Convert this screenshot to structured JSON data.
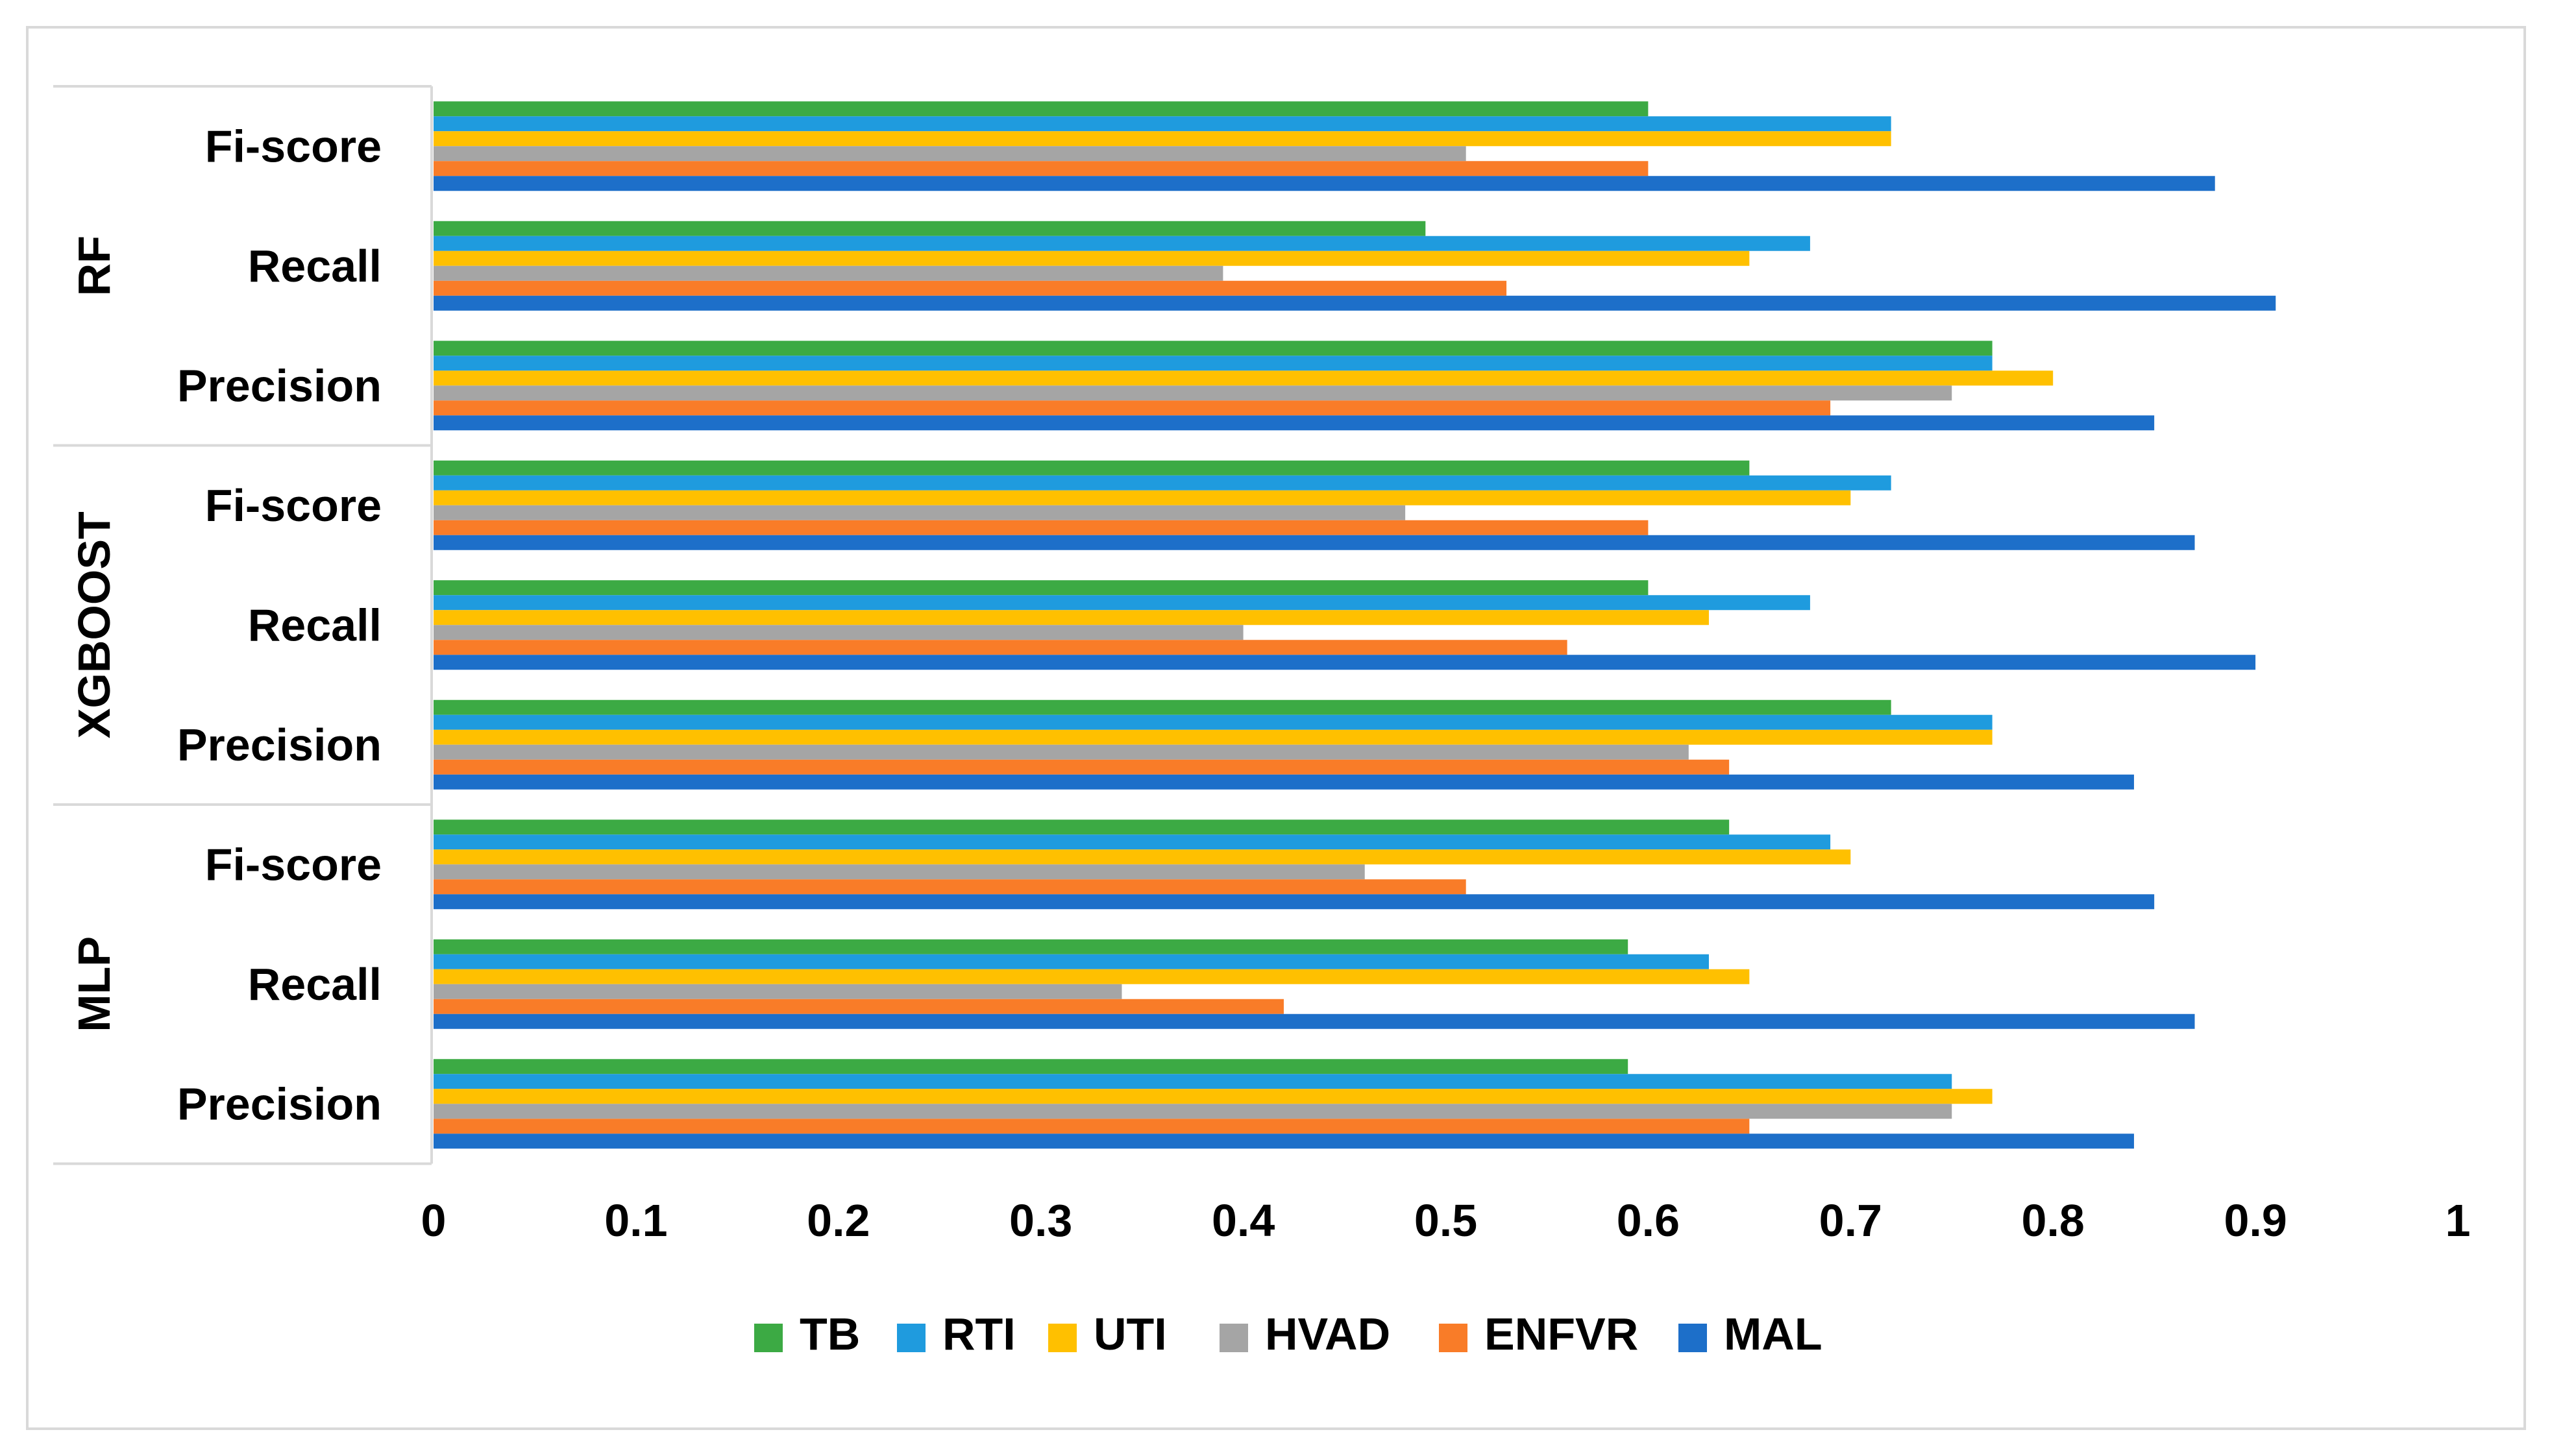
{
  "chart_data": {
    "type": "bar",
    "orientation": "horizontal",
    "title": "",
    "xlabel": "",
    "ylabel": "",
    "xlim": [
      0,
      1
    ],
    "xticks": [
      "0",
      "0.1",
      "0.2",
      "0.3",
      "0.4",
      "0.5",
      "0.6",
      "0.7",
      "0.8",
      "0.9",
      "1"
    ],
    "grid": false,
    "legend_position": "bottom",
    "groups": [
      {
        "name": "RF",
        "categories": [
          {
            "label": "Fi-score",
            "values": {
              "TB": 0.6,
              "RTI": 0.72,
              "UTI": 0.72,
              "HVAD": 0.51,
              "ENFVR": 0.6,
              "MAL": 0.88
            }
          },
          {
            "label": "Recall",
            "values": {
              "TB": 0.49,
              "RTI": 0.68,
              "UTI": 0.65,
              "HVAD": 0.39,
              "ENFVR": 0.53,
              "MAL": 0.91
            }
          },
          {
            "label": "Precision",
            "values": {
              "TB": 0.77,
              "RTI": 0.77,
              "UTI": 0.8,
              "HVAD": 0.75,
              "ENFVR": 0.69,
              "MAL": 0.85
            }
          }
        ]
      },
      {
        "name": "XGBOOST",
        "categories": [
          {
            "label": "Fi-score",
            "values": {
              "TB": 0.65,
              "RTI": 0.72,
              "UTI": 0.7,
              "HVAD": 0.48,
              "ENFVR": 0.6,
              "MAL": 0.87
            }
          },
          {
            "label": "Recall",
            "values": {
              "TB": 0.6,
              "RTI": 0.68,
              "UTI": 0.63,
              "HVAD": 0.4,
              "ENFVR": 0.56,
              "MAL": 0.9
            }
          },
          {
            "label": "Precision",
            "values": {
              "TB": 0.72,
              "RTI": 0.77,
              "UTI": 0.77,
              "HVAD": 0.62,
              "ENFVR": 0.64,
              "MAL": 0.84
            }
          }
        ]
      },
      {
        "name": "MLP",
        "categories": [
          {
            "label": "Fi-score",
            "values": {
              "TB": 0.64,
              "RTI": 0.69,
              "UTI": 0.7,
              "HVAD": 0.46,
              "ENFVR": 0.51,
              "MAL": 0.85
            }
          },
          {
            "label": "Recall",
            "values": {
              "TB": 0.59,
              "RTI": 0.63,
              "UTI": 0.65,
              "HVAD": 0.34,
              "ENFVR": 0.42,
              "MAL": 0.87
            }
          },
          {
            "label": "Precision",
            "values": {
              "TB": 0.59,
              "RTI": 0.75,
              "UTI": 0.77,
              "HVAD": 0.75,
              "ENFVR": 0.65,
              "MAL": 0.84
            }
          }
        ]
      }
    ],
    "series": [
      {
        "name": "TB",
        "color": "#3CAA44"
      },
      {
        "name": "RTI",
        "color": "#1F9BDE"
      },
      {
        "name": "UTI",
        "color": "#FFC000"
      },
      {
        "name": "HVAD",
        "color": "#A5A5A5"
      },
      {
        "name": "ENFVR",
        "color": "#F97C28"
      },
      {
        "name": "MAL",
        "color": "#1D6FC9"
      }
    ]
  }
}
